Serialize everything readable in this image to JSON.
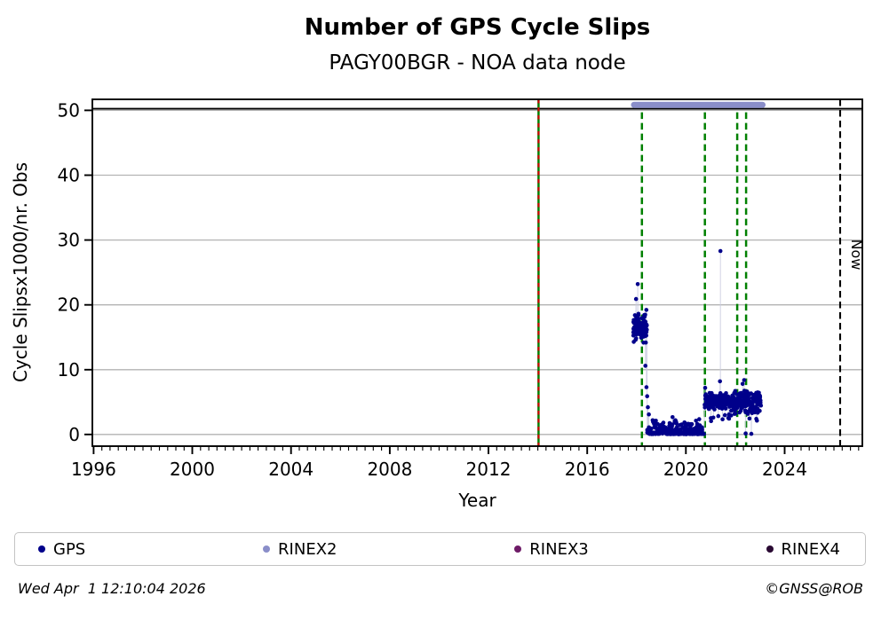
{
  "header": {
    "title": "Number of GPS Cycle Slips",
    "subtitle": "PAGY00BGR - NOA data node"
  },
  "footer": {
    "timestamp": "Wed Apr  1 12:10:04 2026",
    "credit": "©GNSS@ROB"
  },
  "legend": {
    "items": [
      {
        "label": "GPS",
        "color": "#00008b"
      },
      {
        "label": "RINEX2",
        "color": "#8a8ec9"
      },
      {
        "label": "RINEX3",
        "color": "#6e1b67"
      },
      {
        "label": "RINEX4",
        "color": "#2a0a33"
      }
    ]
  },
  "chart_data": {
    "type": "scatter",
    "title": "Number of GPS Cycle Slips",
    "subtitle": "PAGY00BGR - NOA data node",
    "xlabel": "Year",
    "ylabel": "Cycle Slipsx1000/nr. Obs",
    "xlim": [
      1995.95,
      2027.15
    ],
    "ylim": [
      -1.8,
      51.7
    ],
    "xticks": [
      1996,
      2000,
      2004,
      2008,
      2012,
      2016,
      2020,
      2024
    ],
    "yticks": [
      0,
      10,
      20,
      30,
      40,
      50
    ],
    "x_minor_step": 0.33333,
    "grid": "horizontal",
    "grid_color": "#b3b3b3",
    "hline": {
      "y": 50.25,
      "color": "#000000"
    },
    "now_line": {
      "x": 2026.25,
      "label": "Now",
      "color": "#000000",
      "style": "dashed"
    },
    "event_line_receiver_change": {
      "x": 2014.03,
      "colors": [
        "#008000",
        "#d40000"
      ],
      "style": "solid-green-with-red-dashes"
    },
    "event_lines_green_dashed": [
      2018.22,
      2020.77,
      2022.08,
      2022.44
    ],
    "rinex2_period_bar": {
      "x0": 2017.9,
      "x1": 2023.1,
      "y": 50.85,
      "color": "#8a8ec9"
    },
    "series_colors": {
      "GPS": "#00008b",
      "RINEX2": "#8a8ec9",
      "RINEX3": "#6e1b67",
      "RINEX4": "#2a0a33"
    },
    "gps": {
      "color": "#00008b",
      "marker_radius": 2.3,
      "connector_color": "#c9cbe0",
      "clusters": [
        {
          "t0": 2017.87,
          "t1": 2018.42,
          "vmin": 13.8,
          "vmax": 19.4,
          "n": 95,
          "bias": "mid"
        },
        {
          "t0": 2018.42,
          "t1": 2020.74,
          "vmin": 0.05,
          "vmax": 1.7,
          "n": 240,
          "bias": "low"
        },
        {
          "t0": 2018.55,
          "t1": 2020.55,
          "vmin": 1.5,
          "vmax": 2.9,
          "n": 32,
          "bias": "low"
        },
        {
          "t0": 2020.76,
          "t1": 2021.95,
          "vmin": 3.6,
          "vmax": 6.6,
          "n": 160,
          "bias": "mid"
        },
        {
          "t0": 2021.95,
          "t1": 2023.05,
          "vmin": 3.0,
          "vmax": 7.0,
          "n": 170,
          "bias": "mid"
        },
        {
          "t0": 2020.95,
          "t1": 2022.95,
          "vmin": 2.0,
          "vmax": 3.4,
          "n": 16,
          "bias": "flat"
        }
      ],
      "outliers": [
        [
          2017.98,
          20.9
        ],
        [
          2018.05,
          23.2
        ],
        [
          2018.36,
          10.6
        ],
        [
          2018.4,
          7.3
        ],
        [
          2018.43,
          5.9
        ],
        [
          2018.46,
          4.2
        ],
        [
          2018.5,
          3.1
        ],
        [
          2020.78,
          7.2
        ],
        [
          2021.38,
          8.2
        ],
        [
          2021.4,
          28.3
        ],
        [
          2022.3,
          7.8
        ],
        [
          2022.36,
          8.4
        ],
        [
          2022.42,
          0.15
        ],
        [
          2022.65,
          0.1
        ],
        [
          2023.0,
          4.6
        ]
      ]
    }
  }
}
